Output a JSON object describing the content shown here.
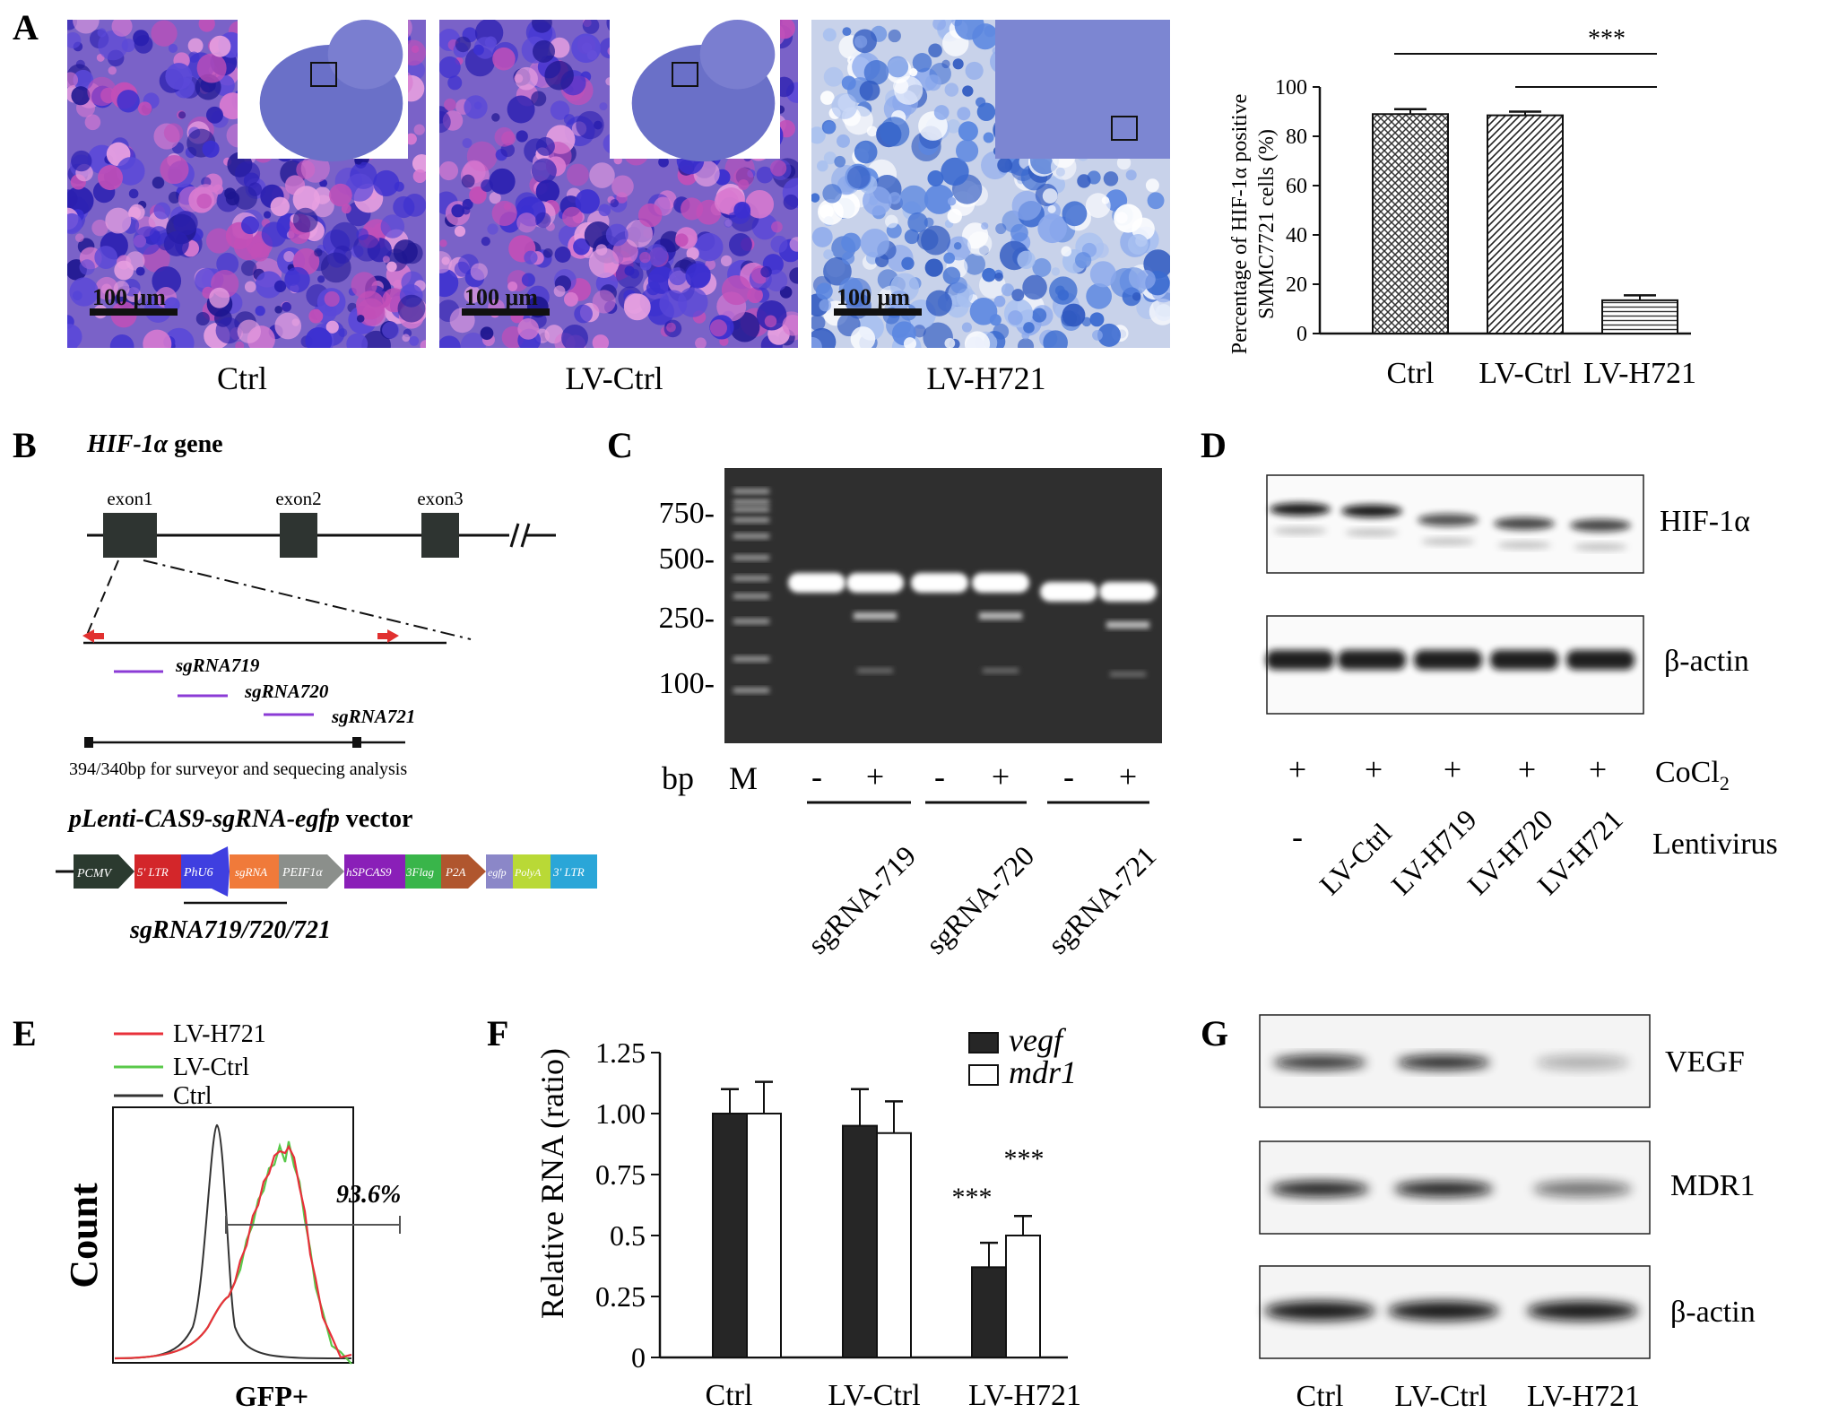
{
  "panels": {
    "A": {
      "letter": "A",
      "images": [
        {
          "label": "Ctrl",
          "scale": "100 μm",
          "stain": "dense"
        },
        {
          "label": "LV-Ctrl",
          "scale": "100 μm",
          "stain": "dense"
        },
        {
          "label": "LV-H721",
          "scale": "100 μm",
          "stain": "light"
        }
      ]
    },
    "B": {
      "letter": "B",
      "gene_name": "HIF-1α",
      "gene_suffix": " gene",
      "exons": [
        "exon1",
        "exon2",
        "exon3"
      ],
      "sgrnas": [
        "sgRNA719",
        "sgRNA720",
        "sgRNA721"
      ],
      "amplicon_note": "394/340bp for surveyor and sequecing analysis",
      "vector_name": "pLenti-CAS9-sgRNA-egfp",
      "vector_suffix": " vector",
      "vector_elements": [
        "PCMV",
        "5' LTR",
        "PhU6",
        "sgRNA",
        "PEIF1α",
        "hSPCAS9",
        "3Flag",
        "P2A",
        "egfp",
        "PolyA",
        "3' LTR"
      ],
      "sgrna_group": "sgRNA719/720/721"
    },
    "C": {
      "letter": "C",
      "ladder": [
        "750-",
        "500-",
        "250-",
        "100-"
      ],
      "bp_label": "bp",
      "marker_label": "M",
      "lane_signs": [
        "-",
        "+",
        "-",
        "+",
        "-",
        "+"
      ],
      "groups": [
        "sgRNA-719",
        "sgRNA-720",
        "sgRNA-721"
      ]
    },
    "D": {
      "letter": "D",
      "proteins": [
        "HIF-1α",
        "β-actin"
      ],
      "cocl2_signs": [
        "+",
        "+",
        "+",
        "+",
        "+"
      ],
      "cocl2_label": "CoCl",
      "cocl2_sub": "2",
      "lentivirus": [
        "-",
        "LV-Ctrl",
        "LV-H719",
        "LV-H720",
        "LV-H721"
      ],
      "lentivirus_label": "Lentivirus"
    },
    "E": {
      "letter": "E",
      "legend": [
        {
          "name": "LV-H721",
          "color": "#e8303a"
        },
        {
          "name": "LV-Ctrl",
          "color": "#59c94a"
        },
        {
          "name": "Ctrl",
          "color": "#333333"
        }
      ],
      "percent": "93.6%",
      "ylabel": "Count",
      "xlabel": "GFP+"
    },
    "F": {
      "letter": "F"
    },
    "G": {
      "letter": "G",
      "proteins": [
        "VEGF",
        "MDR1",
        "β-actin"
      ],
      "lanes": [
        "Ctrl",
        "LV-Ctrl",
        "LV-H721"
      ]
    }
  },
  "chart_data": [
    {
      "type": "bar",
      "panel": "A",
      "categories": [
        "Ctrl",
        "LV-Ctrl",
        "LV-H721"
      ],
      "values": [
        89,
        88.5,
        13.5
      ],
      "errors": [
        2,
        1.5,
        2
      ],
      "ylabel": "Percentage of  HIF-1α positive SMMC7721 cells (%)",
      "ylabel_lines": [
        "Percentage of  HIF-1α positive",
        "SMMC7721 cells (%)"
      ],
      "ylim": [
        0,
        100
      ],
      "yticks": [
        0,
        20,
        40,
        60,
        80,
        100
      ],
      "significance": "***"
    },
    {
      "type": "bar",
      "panel": "F",
      "categories": [
        "Ctrl",
        "LV-Ctrl",
        "LV-H721"
      ],
      "series": [
        {
          "name": "vegf",
          "values": [
            1.0,
            0.95,
            0.37
          ],
          "errors": [
            0.1,
            0.15,
            0.1
          ],
          "color": "#262626"
        },
        {
          "name": "mdr1",
          "values": [
            1.0,
            0.92,
            0.5
          ],
          "errors": [
            0.13,
            0.13,
            0.08
          ],
          "color": "#ffffff"
        }
      ],
      "ylabel": "Relative RNA (ratio)",
      "ylim": [
        0,
        1.25
      ],
      "yticks": [
        "0",
        "0.25",
        "0.5",
        "0.75",
        "1.00",
        "1.25"
      ],
      "significance": [
        "***",
        "***"
      ]
    }
  ]
}
